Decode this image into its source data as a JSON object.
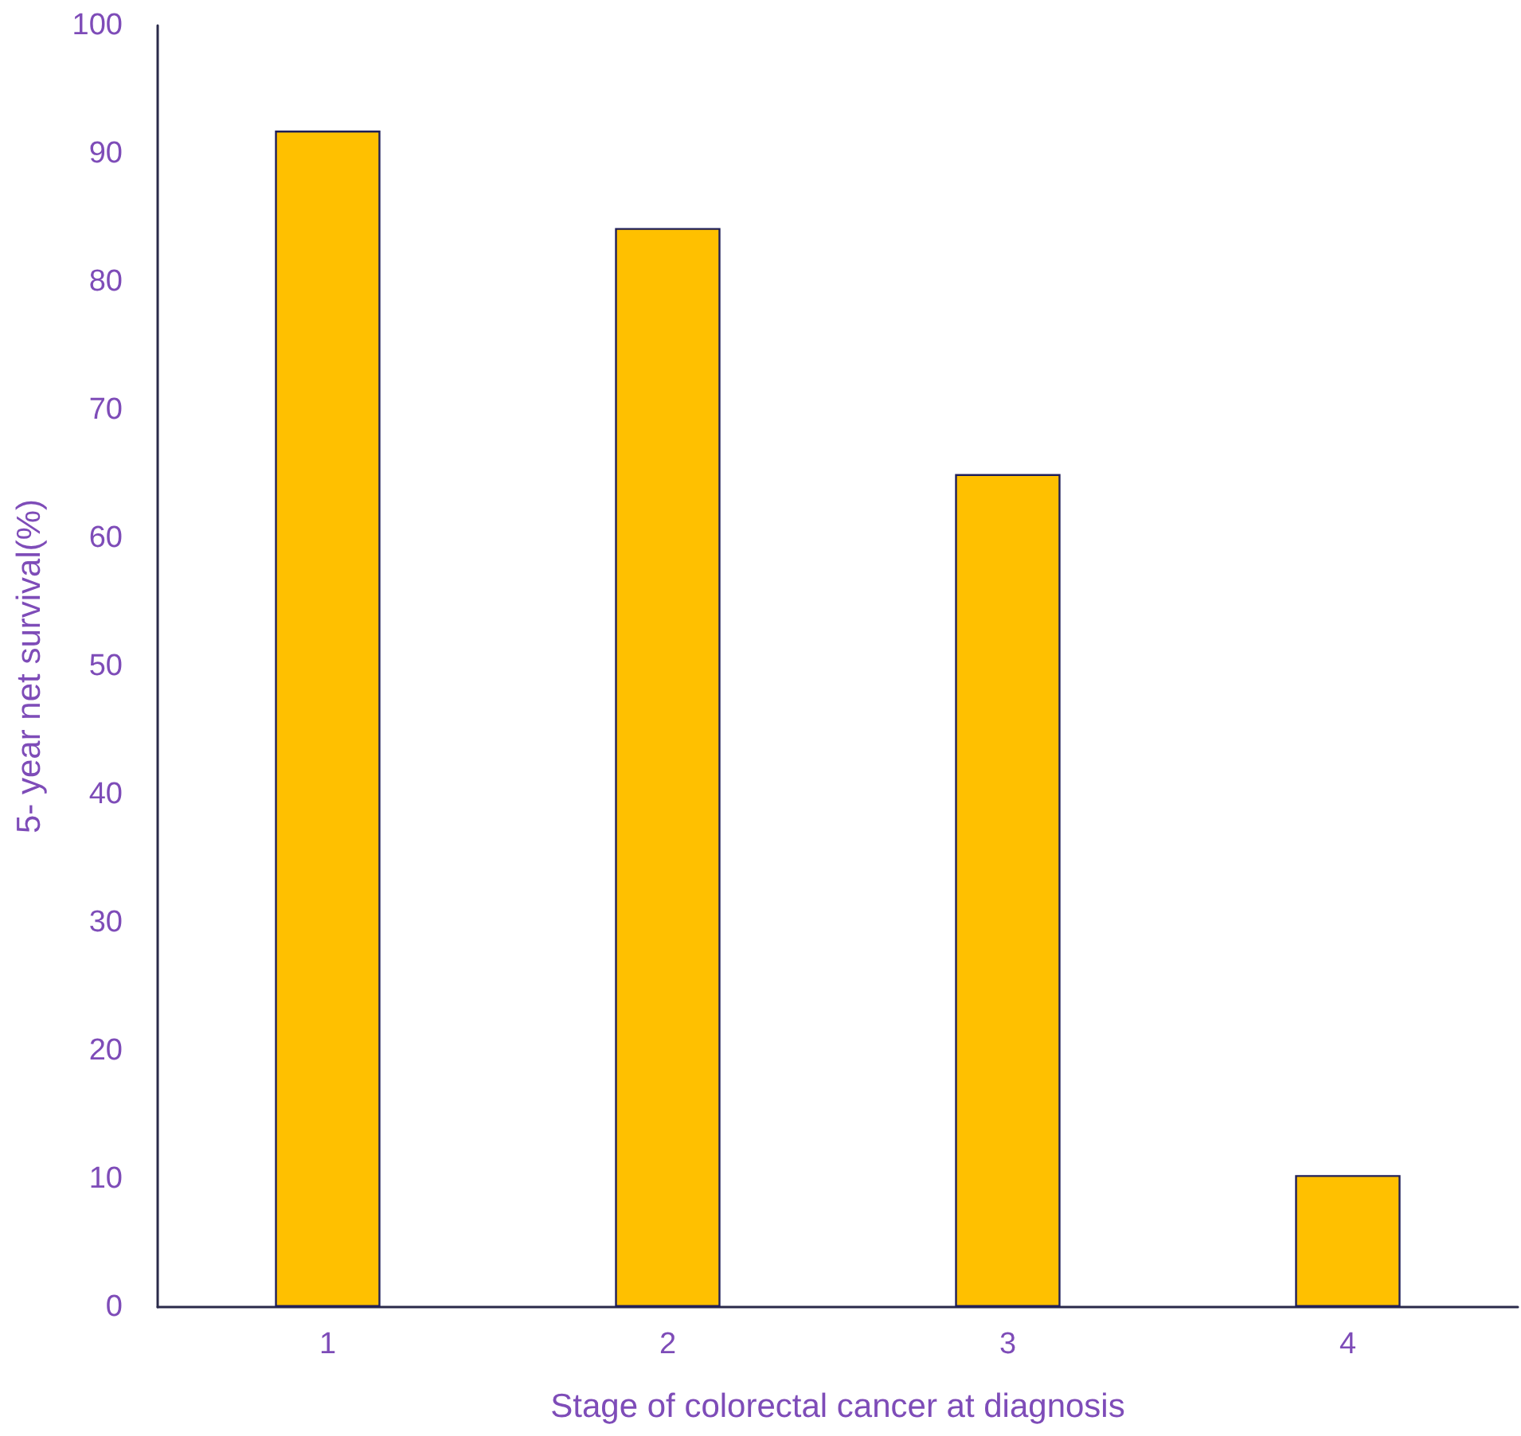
{
  "chart_data": {
    "type": "bar",
    "xlabel": "Stage of colorectal cancer at diagnosis",
    "ylabel": "5- year net survival(%)",
    "categories": [
      "1",
      "2",
      "3",
      "4"
    ],
    "values": [
      91.8,
      84.2,
      65.0,
      10.3
    ],
    "color": "#ffc000",
    "ylim": [
      0,
      100
    ],
    "yticks": [
      0,
      10,
      20,
      30,
      40,
      50,
      60,
      70,
      80,
      90,
      100
    ],
    "grid": false
  }
}
